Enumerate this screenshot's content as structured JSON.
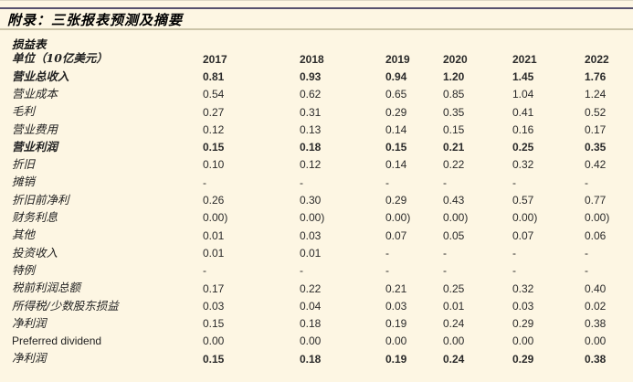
{
  "page": {
    "title": "附录：三张报表预测及摘要",
    "section_title": "损益表"
  },
  "colors": {
    "background": "#FDF6E3",
    "top_rule": "#56516E",
    "header_rule": "#CBC4A8",
    "text": "#1F1F1F"
  },
  "table": {
    "unit_label": "单位（10亿美元）",
    "years": [
      "2017",
      "2018",
      "2019",
      "2020",
      "2021",
      "2022"
    ],
    "rows": [
      {
        "label": "营业总收入",
        "bold": true,
        "values": [
          "0.81",
          "0.93",
          "0.94",
          "1.20",
          "1.45",
          "1.76"
        ]
      },
      {
        "label": "营业成本",
        "values": [
          "0.54",
          "0.62",
          "0.65",
          "0.85",
          "1.04",
          "1.24"
        ]
      },
      {
        "label": "毛利",
        "values": [
          "0.27",
          "0.31",
          "0.29",
          "0.35",
          "0.41",
          "0.52"
        ]
      },
      {
        "label": "营业费用",
        "values": [
          "0.12",
          "0.13",
          "0.14",
          "0.15",
          "0.16",
          "0.17"
        ]
      },
      {
        "label": "营业利润",
        "bold": true,
        "values": [
          "0.15",
          "0.18",
          "0.15",
          "0.21",
          "0.25",
          "0.35"
        ]
      },
      {
        "label": "折旧",
        "values": [
          "0.10",
          "0.12",
          "0.14",
          "0.22",
          "0.32",
          "0.42"
        ]
      },
      {
        "label": "摊销",
        "values": [
          "-",
          "-",
          "-",
          "-",
          "-",
          "-"
        ]
      },
      {
        "label": "折旧前净利",
        "values": [
          "0.26",
          "0.30",
          "0.29",
          "0.43",
          "0.57",
          "0.77"
        ]
      },
      {
        "label": "财务利息",
        "values": [
          "(0.00)",
          "(0.00)",
          "(0.00)",
          "(0.00)",
          "(0.00)",
          "(0.00)"
        ]
      },
      {
        "label": "其他",
        "values": [
          "0.01",
          "0.03",
          "0.07",
          "0.05",
          "0.07",
          "0.06"
        ]
      },
      {
        "label": "投资收入",
        "values": [
          "0.01",
          "0.01",
          "-",
          "-",
          "-",
          "-"
        ]
      },
      {
        "label": "特例",
        "values": [
          "-",
          "-",
          "-",
          "-",
          "-",
          "-"
        ]
      },
      {
        "label": "税前利润总额",
        "values": [
          "0.17",
          "0.22",
          "0.21",
          "0.25",
          "0.32",
          "0.40"
        ]
      },
      {
        "label": "所得税/少数股东损益",
        "values": [
          "0.03",
          "0.04",
          "0.03",
          "0.01",
          "0.03",
          "0.02"
        ]
      },
      {
        "label": "净利润",
        "values": [
          "0.15",
          "0.18",
          "0.19",
          "0.24",
          "0.29",
          "0.38"
        ]
      },
      {
        "label": "Preferred dividend",
        "values": [
          "0.00",
          "0.00",
          "0.00",
          "0.00",
          "0.00",
          "0.00"
        ]
      },
      {
        "label": "净利润",
        "bold_values": true,
        "values": [
          "0.15",
          "0.18",
          "0.19",
          "0.24",
          "0.29",
          "0.38"
        ]
      }
    ]
  }
}
